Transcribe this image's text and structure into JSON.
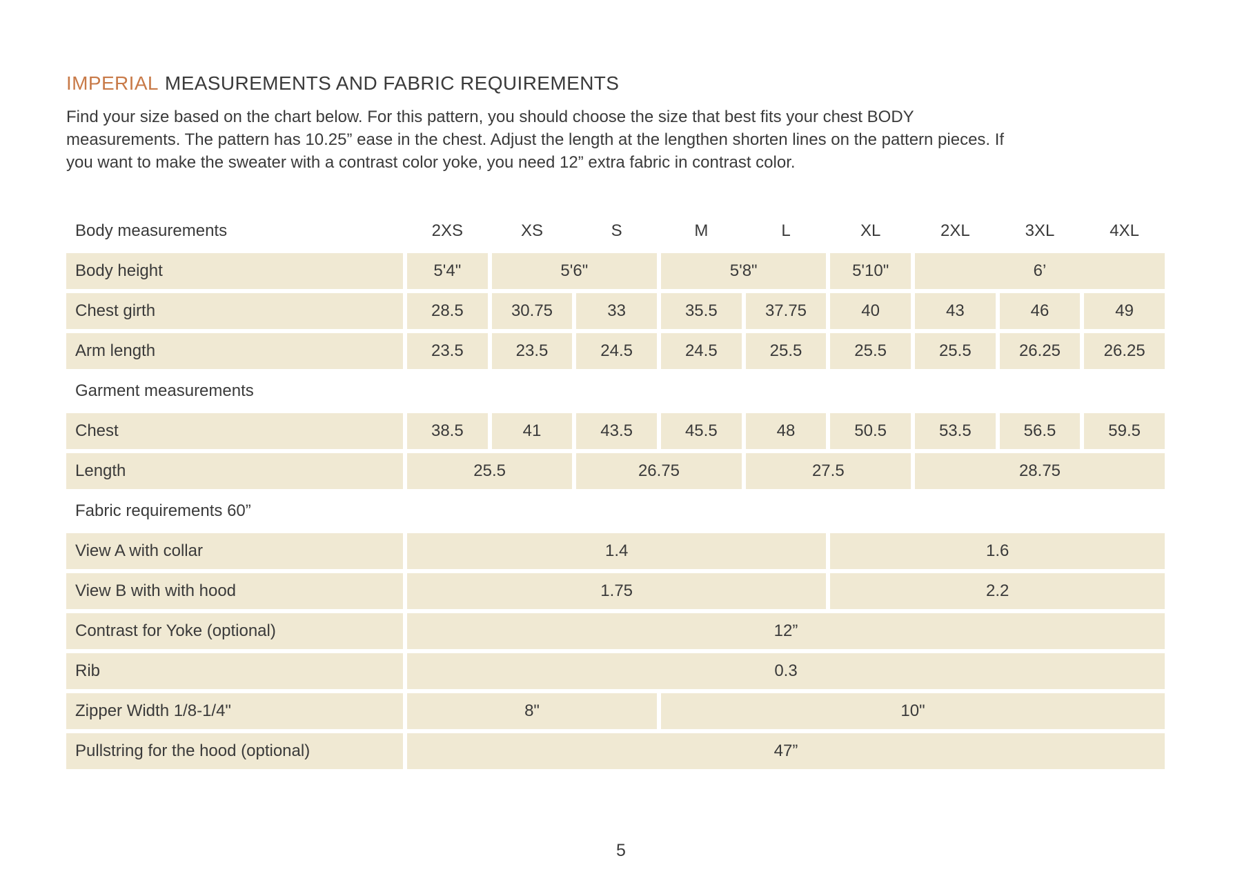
{
  "title": {
    "highlight": "IMPERIAL",
    "rest": "MEASUREMENTS AND FABRIC REQUIREMENTS"
  },
  "intro": "Find your size based on the chart below. For this pattern, you should choose the size that best fits your chest BODY measurements. The pattern has 10.25” ease in the chest.  Adjust the length at the lengthen shorten lines on the pattern pieces. If you want to make the sweater with a contrast color yoke, you need 12” extra fabric in contrast color.",
  "page_number": "5",
  "colors": {
    "accent_orange": "#c87a48",
    "cell_background": "#f0e9d3",
    "text": "#3a3a3a",
    "page_background": "#ffffff"
  },
  "table": {
    "header": {
      "label": "Body measurements",
      "sizes": [
        "2XS",
        "XS",
        "S",
        "M",
        "L",
        "XL",
        "2XL",
        "3XL",
        "4XL"
      ]
    },
    "rows": [
      {
        "type": "data",
        "label": "Body height",
        "cells": [
          {
            "text": "5'4\"",
            "span": 1
          },
          {
            "text": "5'6\"",
            "span": 2
          },
          {
            "text": "5'8\"",
            "span": 2
          },
          {
            "text": "5'10\"",
            "span": 1
          },
          {
            "text": "6’",
            "span": 3
          }
        ]
      },
      {
        "type": "data",
        "label": "Chest girth",
        "cells": [
          {
            "text": "28.5",
            "span": 1
          },
          {
            "text": "30.75",
            "span": 1
          },
          {
            "text": "33",
            "span": 1
          },
          {
            "text": "35.5",
            "span": 1
          },
          {
            "text": "37.75",
            "span": 1
          },
          {
            "text": "40",
            "span": 1
          },
          {
            "text": "43",
            "span": 1
          },
          {
            "text": "46",
            "span": 1
          },
          {
            "text": "49",
            "span": 1
          }
        ]
      },
      {
        "type": "data",
        "label": "Arm length",
        "cells": [
          {
            "text": "23.5",
            "span": 1
          },
          {
            "text": "23.5",
            "span": 1
          },
          {
            "text": "24.5",
            "span": 1
          },
          {
            "text": "24.5",
            "span": 1
          },
          {
            "text": "25.5",
            "span": 1
          },
          {
            "text": "25.5",
            "span": 1
          },
          {
            "text": "25.5",
            "span": 1
          },
          {
            "text": "26.25",
            "span": 1
          },
          {
            "text": "26.25",
            "span": 1
          }
        ]
      },
      {
        "type": "section",
        "label": "Garment measurements"
      },
      {
        "type": "data",
        "label": "Chest",
        "cells": [
          {
            "text": "38.5",
            "span": 1
          },
          {
            "text": "41",
            "span": 1
          },
          {
            "text": "43.5",
            "span": 1
          },
          {
            "text": "45.5",
            "span": 1
          },
          {
            "text": "48",
            "span": 1
          },
          {
            "text": "50.5",
            "span": 1
          },
          {
            "text": "53.5",
            "span": 1
          },
          {
            "text": "56.5",
            "span": 1
          },
          {
            "text": "59.5",
            "span": 1
          }
        ]
      },
      {
        "type": "data",
        "label": "Length",
        "cells": [
          {
            "text": "25.5",
            "span": 2
          },
          {
            "text": "26.75",
            "span": 2
          },
          {
            "text": "27.5",
            "span": 2
          },
          {
            "text": "28.75",
            "span": 3
          }
        ]
      },
      {
        "type": "section",
        "label": "Fabric requirements 60”"
      },
      {
        "type": "data",
        "label": "View A with collar",
        "cells": [
          {
            "text": "1.4",
            "span": 5
          },
          {
            "text": "1.6",
            "span": 4
          }
        ]
      },
      {
        "type": "data",
        "label": "View B with with hood",
        "cells": [
          {
            "text": "1.75",
            "span": 5
          },
          {
            "text": "2.2",
            "span": 4
          }
        ]
      },
      {
        "type": "data",
        "label": "Contrast for Yoke (optional)",
        "cells": [
          {
            "text": "12”",
            "span": 9
          }
        ]
      },
      {
        "type": "data",
        "label": "Rib",
        "cells": [
          {
            "text": "0.3",
            "span": 9
          }
        ]
      },
      {
        "type": "data",
        "label": "Zipper Width 1/8-1/4\"",
        "cells": [
          {
            "text": "8\"",
            "span": 3
          },
          {
            "text": "10\"",
            "span": 6
          }
        ]
      },
      {
        "type": "data",
        "label": "Pullstring for the hood (optional)",
        "cells": [
          {
            "text": "47”",
            "span": 9
          }
        ]
      }
    ]
  }
}
